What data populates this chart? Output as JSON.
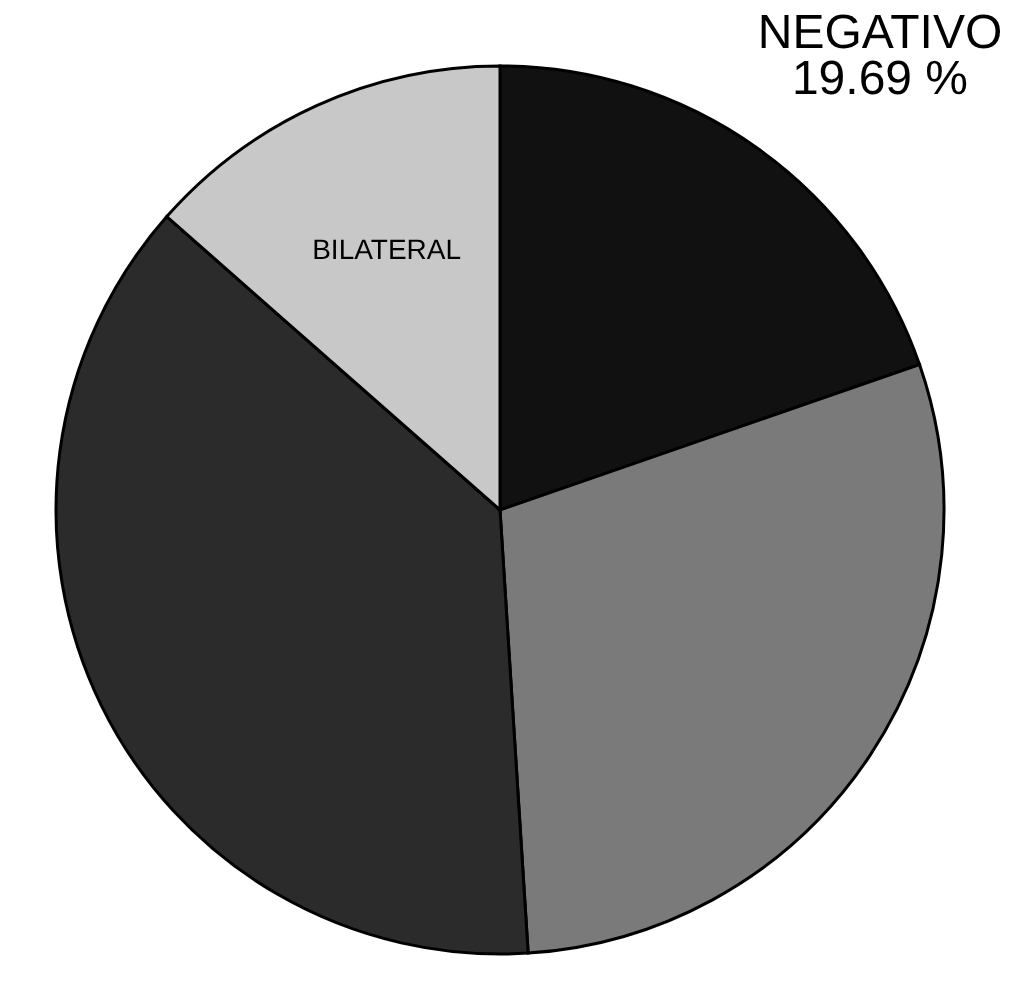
{
  "chart_data": {
    "type": "pie",
    "categories": [
      "NEGATIVO",
      null,
      null,
      "BILATERAL"
    ],
    "values": [
      19.69,
      29.3,
      37.5,
      13.51
    ],
    "colors": [
      "#111111",
      "#7a7a7a",
      "#2b2b2b",
      "#c8c8c8"
    ],
    "value_labels": [
      "19.69 %",
      null,
      null,
      null
    ]
  }
}
